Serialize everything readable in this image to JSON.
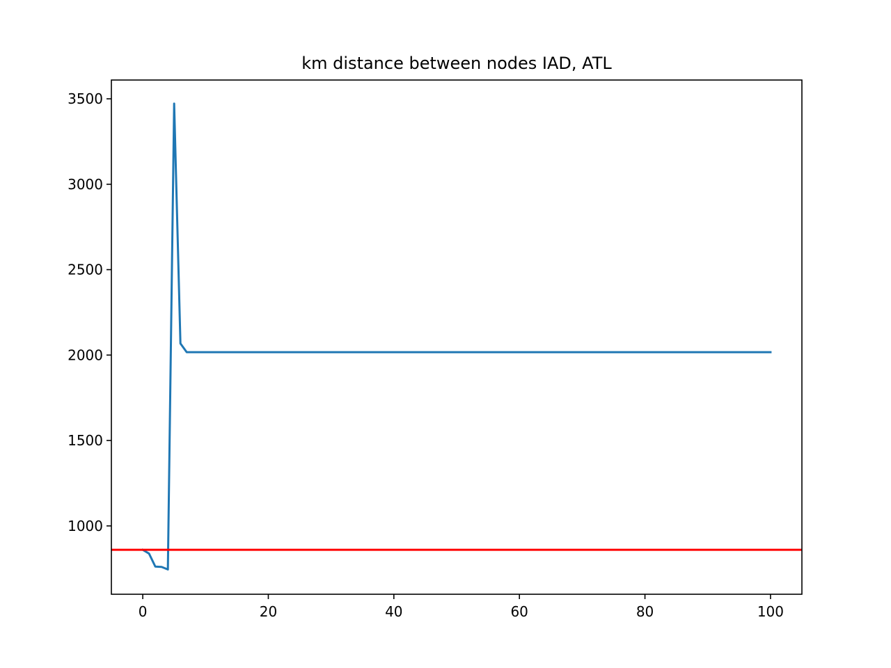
{
  "chart_data": {
    "type": "line",
    "title": "km distance between nodes IAD, ATL",
    "xlabel": "",
    "ylabel": "",
    "xlim": [
      -5,
      105
    ],
    "ylim": [
      600,
      3610
    ],
    "xticks": [
      0,
      20,
      40,
      60,
      80,
      100
    ],
    "yticks": [
      1000,
      1500,
      2000,
      2500,
      3000,
      3500
    ],
    "grid": false,
    "series": [
      {
        "color": "#1f77b4",
        "x": [
          0,
          1,
          2,
          3,
          4,
          5,
          6,
          7,
          8,
          9,
          10,
          15,
          20,
          30,
          40,
          50,
          60,
          70,
          80,
          90,
          100
        ],
        "values": [
          860,
          838,
          762,
          760,
          745,
          3472,
          2068,
          2017,
          2017,
          2017,
          2017,
          2017,
          2017,
          2017,
          2017,
          2017,
          2017,
          2017,
          2017,
          2017,
          2017
        ]
      }
    ],
    "hlines": [
      {
        "y": 860,
        "color": "#ff0000"
      }
    ]
  }
}
